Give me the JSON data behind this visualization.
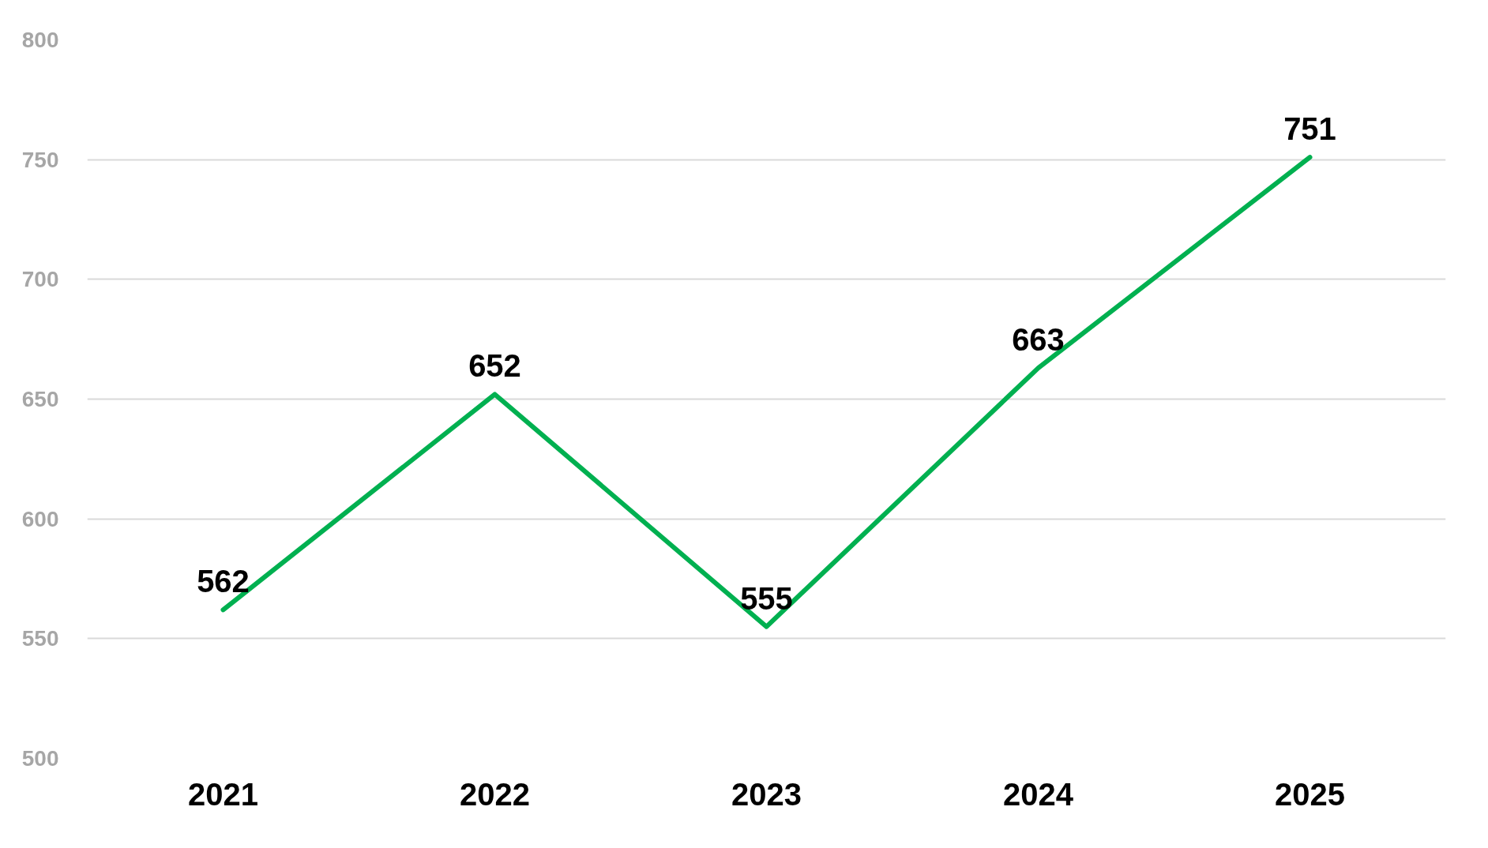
{
  "chart_data": {
    "type": "line",
    "categories": [
      "2021",
      "2022",
      "2023",
      "2024",
      "2025"
    ],
    "series": [
      {
        "color": "#00b050",
        "values": [
          562,
          652,
          555,
          663,
          751
        ]
      }
    ],
    "ylim": [
      500,
      800
    ],
    "yticks": [
      500,
      550,
      600,
      650,
      700,
      750,
      800
    ],
    "grid": "y",
    "data_labels": true,
    "marker": "none",
    "line_style": "solid"
  }
}
